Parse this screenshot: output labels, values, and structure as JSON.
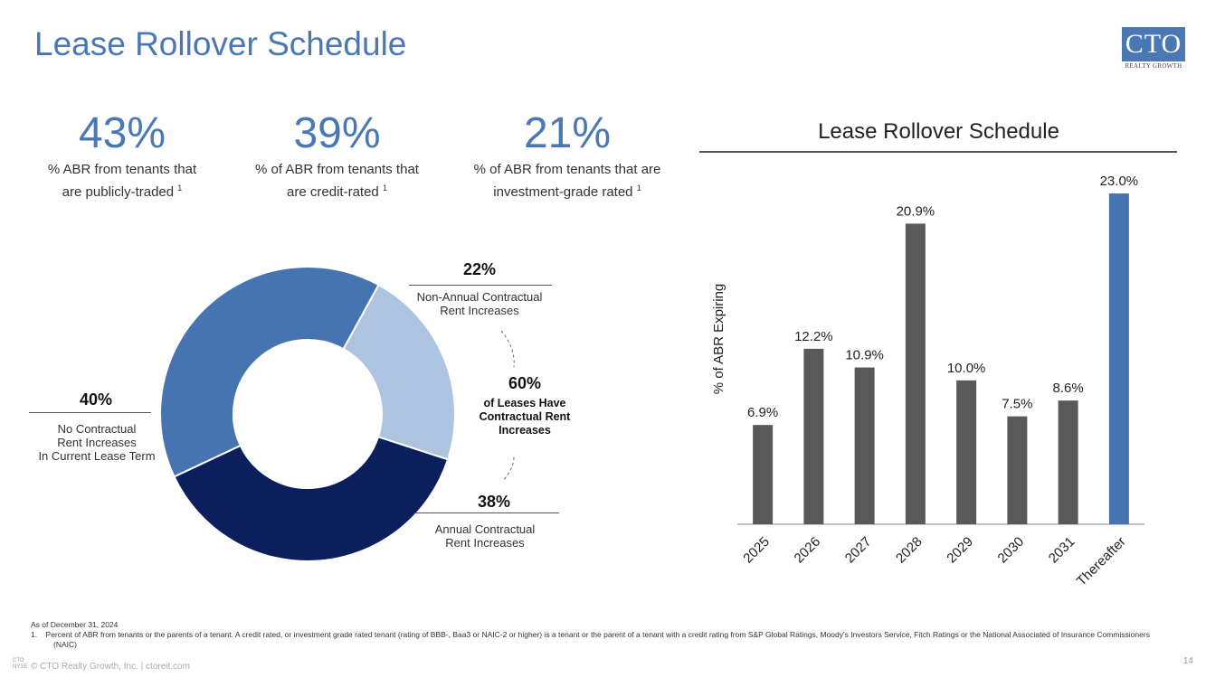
{
  "title": "Lease Rollover Schedule",
  "logo": {
    "text": "CTO",
    "subtext": "REALTY GROWTH"
  },
  "stats": [
    {
      "value": "43%",
      "desc": "% ABR from tenants that are publicly-traded",
      "note": "1"
    },
    {
      "value": "39%",
      "desc": "% of ABR from tenants that are credit-rated",
      "note": "1"
    },
    {
      "value": "21%",
      "desc": "% of ABR from tenants that are investment-grade rated",
      "note": "1"
    }
  ],
  "donut": {
    "segments": [
      {
        "pct": "22%",
        "label": "Non-Annual Contractual\nRent Increases",
        "value": 22,
        "color": "#adc4e0"
      },
      {
        "pct": "38%",
        "label": "Annual Contractual\nRent Increases",
        "value": 38,
        "color": "#0b1f5c"
      },
      {
        "pct": "40%",
        "label": "No Contractual\nRent Increases\nIn Current Lease Term",
        "value": 40,
        "color": "#4674b0"
      }
    ],
    "center_pct": "60%",
    "center_label": "of Leases Have Contractual Rent Increases"
  },
  "chart_data": {
    "type": "bar",
    "title": "Lease Rollover Schedule",
    "ylabel": "% of ABR Expiring",
    "xlabel": "",
    "categories": [
      "2025",
      "2026",
      "2027",
      "2028",
      "2029",
      "2030",
      "2031",
      "Thereafter"
    ],
    "values": [
      6.9,
      12.2,
      10.9,
      20.9,
      10.0,
      7.5,
      8.6,
      23.0
    ],
    "data_labels": [
      "6.9%",
      "12.2%",
      "10.9%",
      "20.9%",
      "10.0%",
      "7.5%",
      "8.6%",
      "23.0%"
    ],
    "colors": [
      "#595959",
      "#595959",
      "#595959",
      "#595959",
      "#595959",
      "#595959",
      "#595959",
      "#4674b0"
    ],
    "ylim": [
      0,
      23
    ],
    "grid": false
  },
  "footnotes": {
    "as_of": "As of December 31, 2024",
    "notes": [
      "1.    Percent of ABR from tenants or the parents of a tenant. A credit rated, or investment grade rated tenant (rating of BBB-, Baa3 or NAIC-2 or higher) is a tenant or the parent of a tenant with a credit rating from S&P Global Ratings, Moody's Investors Service, Fitch Ratings or the National Associated of Insurance Commissioners (NAIC)"
    ]
  },
  "footer": {
    "exchange": "CTO NYSE",
    "copyright": "© CTO Realty Growth, Inc. | ctoreit.com",
    "page": "14"
  }
}
